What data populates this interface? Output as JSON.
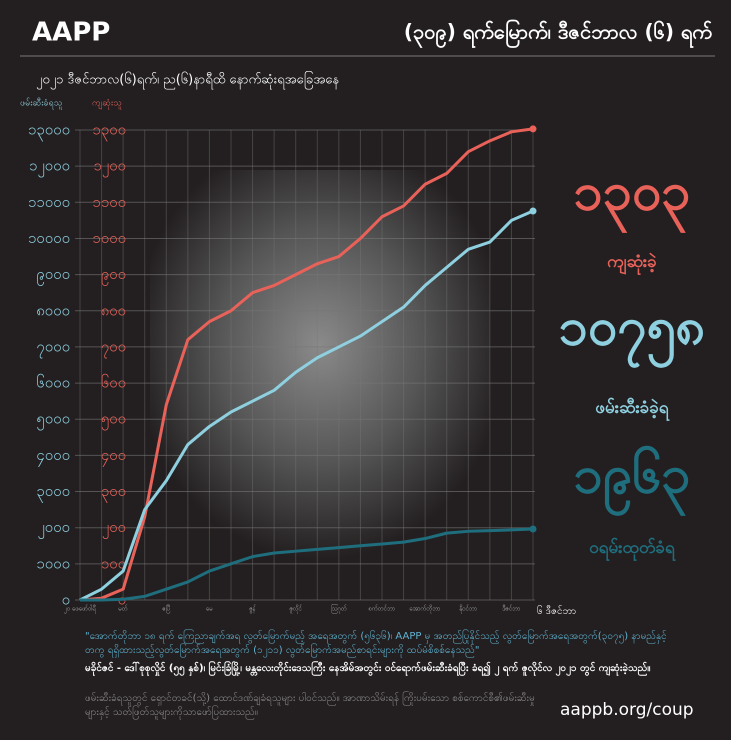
{
  "header": {
    "logo": "AAPP",
    "title": "(၃၀၉) ရက်မြောက်၊ ဒီဇင်ဘာလ (၆) ရက်"
  },
  "chart_data": {
    "type": "line",
    "title": "၂၀၂၁ ဒီဇင်ဘာလ(၆)ရက်၊ ည(၆)နာရီထိ နောက်ဆုံးရအခြေအနေ",
    "y_label": "ဖမ်းဆီးခံရသူ",
    "y2_label": "ကျဆုံးသူ",
    "categories": [
      "၂၀ ဖေဖော်ဝါရီ",
      null,
      "မတ်",
      null,
      "ဧပြီ",
      null,
      "မေ",
      null,
      "ဇွန်",
      null,
      "ဇူလိုင်",
      null,
      "ဩဂုတ်",
      null,
      "စက်တင်ဘာ",
      null,
      "အောက်တိုဘာ",
      null,
      "နိုဝင်ဘာ",
      null,
      "ဒီဇင်ဘာ",
      "၆ ဒီဇင်ဘာ"
    ],
    "series": [
      {
        "name": "ကျဆုံးသူ",
        "color": "#e8625a",
        "axis": "y2",
        "values": [
          0,
          5,
          30,
          230,
          540,
          720,
          770,
          800,
          850,
          870,
          900,
          930,
          950,
          1000,
          1060,
          1090,
          1150,
          1180,
          1240,
          1270,
          1295,
          1303
        ]
      },
      {
        "name": "ဖမ်းဆီးခံရသူ",
        "color": "#8fd0e0",
        "values": [
          0,
          300,
          800,
          2500,
          3300,
          4300,
          4800,
          5200,
          5500,
          5800,
          6300,
          6700,
          7000,
          7300,
          7700,
          8100,
          8700,
          9200,
          9700,
          9900,
          10500,
          10758
        ]
      },
      {
        "name": "ဝရမ်းထုတ်ခံရ",
        "color": "#1f6e7e",
        "values": [
          0,
          0,
          20,
          100,
          300,
          500,
          800,
          1000,
          1200,
          1300,
          1350,
          1400,
          1450,
          1500,
          1550,
          1600,
          1700,
          1850,
          1900,
          1920,
          1940,
          1963
        ]
      }
    ],
    "ylim": [
      0,
      13000
    ],
    "yticks": [
      {
        "value": 0,
        "label": "၀"
      },
      {
        "value": 1000,
        "label": "၁၀၀၀"
      },
      {
        "value": 2000,
        "label": "၂၀၀၀"
      },
      {
        "value": 3000,
        "label": "၃၀၀၀"
      },
      {
        "value": 4000,
        "label": "၄၀၀၀"
      },
      {
        "value": 5000,
        "label": "၅၀၀၀"
      },
      {
        "value": 6000,
        "label": "၆၀၀၀"
      },
      {
        "value": 7000,
        "label": "၇၀၀၀"
      },
      {
        "value": 8000,
        "label": "၈၀၀၀"
      },
      {
        "value": 9000,
        "label": "၉၀၀၀"
      },
      {
        "value": 10000,
        "label": "၁၀၀၀၀"
      },
      {
        "value": 11000,
        "label": "၁၁၀၀၀"
      },
      {
        "value": 12000,
        "label": "၁၂၀၀၀"
      },
      {
        "value": 13000,
        "label": "၁၃၀၀၀"
      }
    ],
    "y2lim": [
      0,
      1300
    ],
    "y2ticks": [
      {
        "value": 0,
        "label": "၀"
      },
      {
        "value": 100,
        "label": "၁၀၀"
      },
      {
        "value": 200,
        "label": "၂၀၀"
      },
      {
        "value": 300,
        "label": "၃၀၀"
      },
      {
        "value": 400,
        "label": "၄၀၀"
      },
      {
        "value": 500,
        "label": "၅၀၀"
      },
      {
        "value": 600,
        "label": "၆၀၀"
      },
      {
        "value": 700,
        "label": "၇၀၀"
      },
      {
        "value": 800,
        "label": "၈၀၀"
      },
      {
        "value": 900,
        "label": "၉၀၀"
      },
      {
        "value": 1000,
        "label": "၁၀၀၀"
      },
      {
        "value": 1100,
        "label": "၁၁၀၀"
      },
      {
        "value": 1200,
        "label": "၁၂၀၀"
      },
      {
        "value": 1300,
        "label": "၁၃၀၀"
      }
    ],
    "grid": true
  },
  "summary": [
    {
      "number": "၁၃၀၃",
      "label": "ကျဆုံးခဲ့",
      "color": "#e8625a"
    },
    {
      "number": "၁၀၇၅၈",
      "label": "ဖမ်းဆီးခံခဲ့ရ",
      "color": "#8fd0e0"
    },
    {
      "number": "၁၉၆၃",
      "label": "ဝရမ်းထုတ်ခံရ",
      "color": "#1f6e7e"
    }
  ],
  "footer": {
    "quote": "\"အောက်တိုဘာ ၁၈ ရက် ကြေညာချက်အရ လွတ်မြောက်မည့် အရေအတွက် (၅၆၃၆)၊ AAPP မှ အတည်ပြုနိုင်သည့် လွတ်မြောက်အရေအတွက်(၃၀၇၅) နာမည်နှင့်တကွ ရရှိထားသည့်လွတ်မြောက်အရေအတွက် (၁၂၁၁) လွတ်မြောက်အမည်စာရင်းများကို ထပ်မံစိစစ်နေသည်\"",
    "story": "မခိုင်ဇင် - ဒေါ်စုစုလှိုင် (၅၅ နှစ်)၊ မြင်းခြံမြို့၊ မန္တလေးတိုင်းဒေသကြီး နေအိမ်အတွင်း ဝင်ရောက်ဖမ်းဆီးခံရပြီး ခံရ၍ ၂ ရက် ဇူလိုင်လ ၂၀၂၁ တွင် ကျဆုံးခဲ့သည်။",
    "note": "ဖမ်းဆီးခံရသူတွင် ရှောင်တခင်(သို့) ထောင်ဒဏ်ချခံရသူများ ပါဝင်သည်။ အာဏာသိမ်းရန် ကြိုးပမ်းသော စစ်ကောင်စီ၏ဖမ်းဆီးမှုများနှင့် သတ်ဖြတ်သူများကိုသာဖော်ပြထားသည်။",
    "url": "aappb.org/coup"
  }
}
